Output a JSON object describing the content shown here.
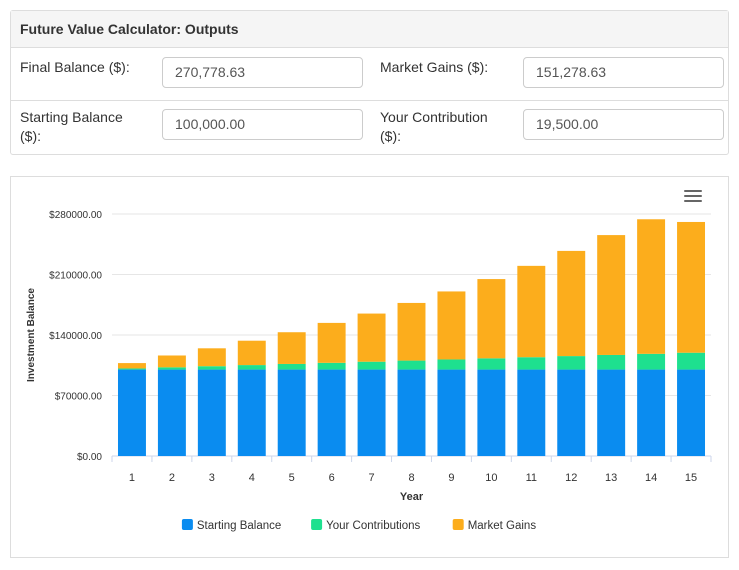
{
  "panel": {
    "title": "Future Value Calculator: Outputs",
    "final_balance_label": "Final Balance ($):",
    "final_balance_value": "270,778.63",
    "market_gains_label": "Market Gains ($):",
    "market_gains_value": "151,278.63",
    "starting_balance_label_line1": "Starting Balance",
    "starting_balance_label_line2": "($):",
    "starting_balance_value": "100,000.00",
    "contribution_label_line1": "Your Contribution",
    "contribution_label_line2": "($):",
    "contribution_value": "19,500.00"
  },
  "chart_menu_icon": "hamburger-menu-icon",
  "chart_data": {
    "type": "bar",
    "stacked": true,
    "title": "",
    "xlabel": "Year",
    "ylabel": "Investment Balance",
    "ylim": [
      0,
      280000
    ],
    "yticks": [
      0,
      70000,
      140000,
      210000,
      280000
    ],
    "ytick_labels": [
      "$0.00",
      "$70000.00",
      "$140000.00",
      "$210000.00",
      "$280000.00"
    ],
    "categories": [
      "1",
      "2",
      "3",
      "4",
      "5",
      "6",
      "7",
      "8",
      "9",
      "10",
      "11",
      "12",
      "13",
      "14",
      "15"
    ],
    "series": [
      {
        "name": "Starting Balance",
        "color": "#0a8cf0",
        "values": [
          100000,
          100000,
          100000,
          100000,
          100000,
          100000,
          100000,
          100000,
          100000,
          100000,
          100000,
          100000,
          100000,
          100000,
          100000
        ]
      },
      {
        "name": "Your Contributions",
        "color": "#1ee08f",
        "values": [
          1300,
          2600,
          3900,
          5200,
          6500,
          7800,
          9100,
          10400,
          11700,
          13000,
          14300,
          15600,
          16900,
          18200,
          19500
        ]
      },
      {
        "name": "Market Gains",
        "color": "#fcad1c",
        "values": [
          6200,
          13700,
          20700,
          28200,
          36700,
          46200,
          55700,
          66700,
          78700,
          91700,
          105700,
          121700,
          138700,
          155700,
          151278.63
        ]
      }
    ],
    "legend_position": "bottom-center"
  }
}
